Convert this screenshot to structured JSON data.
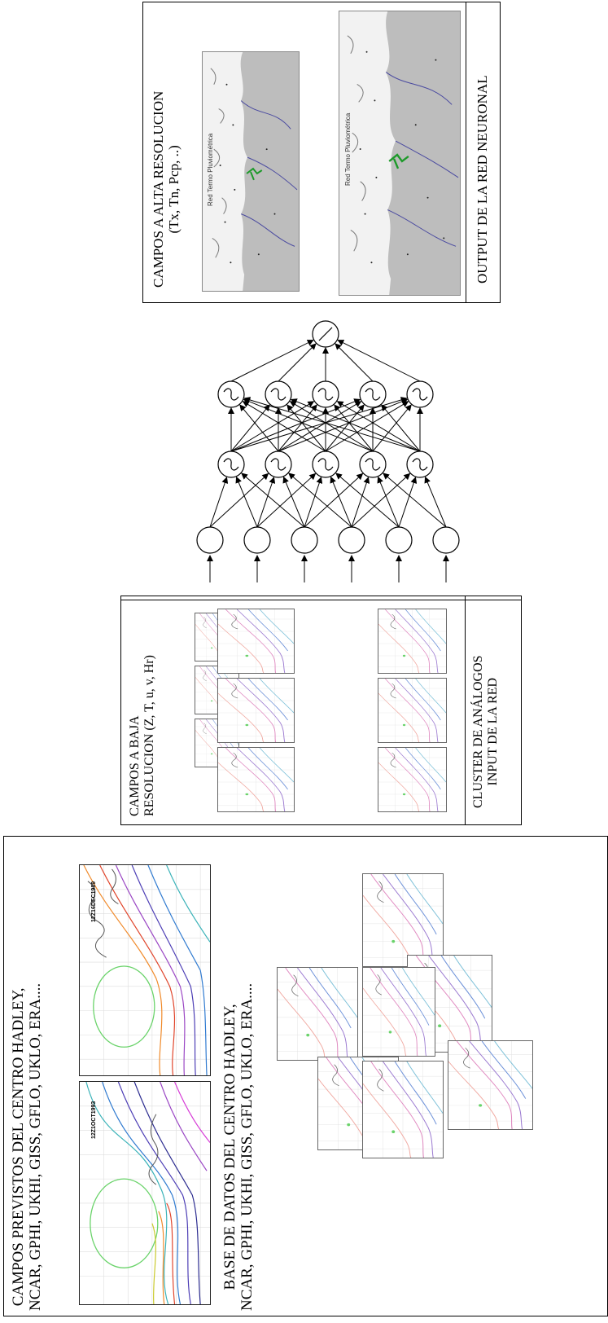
{
  "output_panel": {
    "title_line1": "CAMPOS A ALTA RESOLUCION",
    "title_line2": "(Tx, Tn, Pcp, ..)",
    "map_label_1": "Red Termo Pluviométrica",
    "map_label_2": "Red Termo Pluviométrica",
    "footer": "OUTPUT DE LA RED NEURONAL"
  },
  "input_panel": {
    "title_line1": "CAMPOS A BAJA",
    "title_line2": "RESOLUCION (Z, T, u, v, Hr)",
    "footer_line1": "CLUSTER DE ANÁLOGOS",
    "footer_line2": "INPUT DE LA RED"
  },
  "forecast_panel": {
    "title_line1": "CAMPOS PREVISTOS DEL CENTRO HADLEY,",
    "title_line2": "NCAR, GPHI, UKHI, GISS, GFLO, UKLO, ERA....",
    "db_line1": "BASE DE DATOS DEL CENTRO HADLEY,",
    "db_line2": "NCAR, GPHI, UKHI, GISS, GFLO, UKLO, ERA....",
    "map1_date": "12Z1OCT1993",
    "map2_date": "12Z16DEC1989"
  }
}
